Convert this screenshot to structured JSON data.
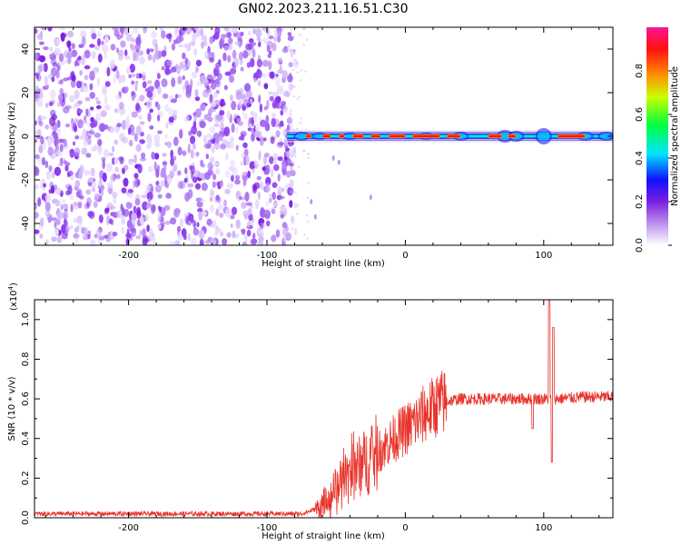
{
  "title": "GN02.2023.211.16.51.C30",
  "chart_data": [
    {
      "type": "heatmap",
      "xlabel": "Height of straight line (km)",
      "ylabel": "Frequency (Hz)",
      "xlim": [
        -268,
        150
      ],
      "ylim": [
        -50,
        50
      ],
      "xticks": [
        -200,
        -100,
        0,
        100
      ],
      "yticks": [
        -40,
        -20,
        0,
        20,
        40
      ],
      "noise_region_x": [
        -268,
        -83
      ],
      "signal_frequency_hz": 0,
      "colorbar": {
        "label": "Normalized spectral amplitude",
        "range": [
          0,
          1
        ],
        "ticks": [
          "0.0",
          "0.2",
          "0.4",
          "0.6",
          "0.8"
        ],
        "colors": [
          "#ffffff",
          "#8a2be2",
          "#0000ff",
          "#00ffff",
          "#00ff00",
          "#ffff00",
          "#ff8000",
          "#ff0000",
          "#ff1493"
        ]
      }
    },
    {
      "type": "line",
      "xlabel": "Height of straight line (km)",
      "ylabel": "SNR (10 * v/v)",
      "scale_label": "(x10",
      "scale_exp": "4",
      "scale_close": ")",
      "xlim": [
        -268,
        150
      ],
      "ylim": [
        0,
        1.1
      ],
      "xticks": [
        -200,
        -100,
        0,
        100
      ],
      "yticks": [
        "0.0",
        "0.2",
        "0.4",
        "0.6",
        "0.8",
        "1.0"
      ],
      "color": "#e8322a",
      "series_points": {
        "x": [
          -268,
          -110,
          -75,
          -62,
          -55,
          -45,
          -35,
          -25,
          -15,
          -5,
          5,
          15,
          25,
          40,
          60,
          80,
          95,
          100,
          105,
          110,
          130,
          150
        ],
        "y": [
          0.02,
          0.02,
          0.02,
          0.05,
          0.12,
          0.2,
          0.25,
          0.3,
          0.36,
          0.42,
          0.47,
          0.53,
          0.58,
          0.6,
          0.6,
          0.6,
          0.6,
          0.6,
          0.6,
          0.6,
          0.61,
          0.61
        ]
      },
      "spikes": [
        {
          "x": 92,
          "y": 0.45
        },
        {
          "x": 104,
          "y": 1.1
        },
        {
          "x": 106,
          "y": 0.28
        },
        {
          "x": 107,
          "y": 0.96
        }
      ]
    }
  ]
}
